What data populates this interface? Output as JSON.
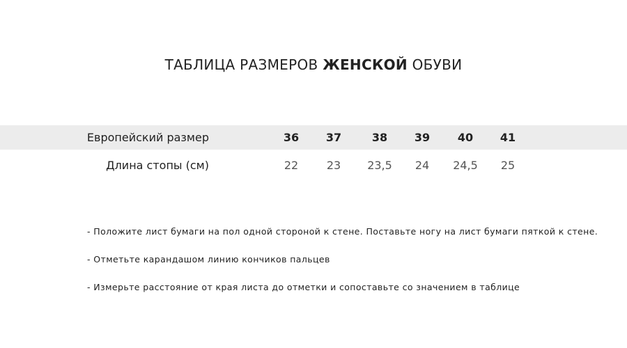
{
  "title": {
    "before": "ТАБЛИЦА РАЗМЕРОВ ",
    "bold": "ЖЕНСКОЙ",
    "after": " ОБУВИ"
  },
  "table": {
    "header_label": "Европейский размер",
    "sizes": [
      "36",
      "37",
      "38",
      "39",
      "40",
      "41"
    ],
    "row_label": "Длина стопы (см)",
    "lengths": [
      "22",
      "23",
      "23,5",
      "24",
      "24,5",
      "25"
    ],
    "header_background": "#ececec"
  },
  "notes": [
    "- Положите лист бумаги на пол одной стороной к стене. Поставьте ногу на лист бумаги пяткой к стене.",
    "- Отметьте карандашом линию кончиков пальцев",
    "- Измерьте расстояние от края листа до отметки и сопоставьте со значением в таблице"
  ]
}
